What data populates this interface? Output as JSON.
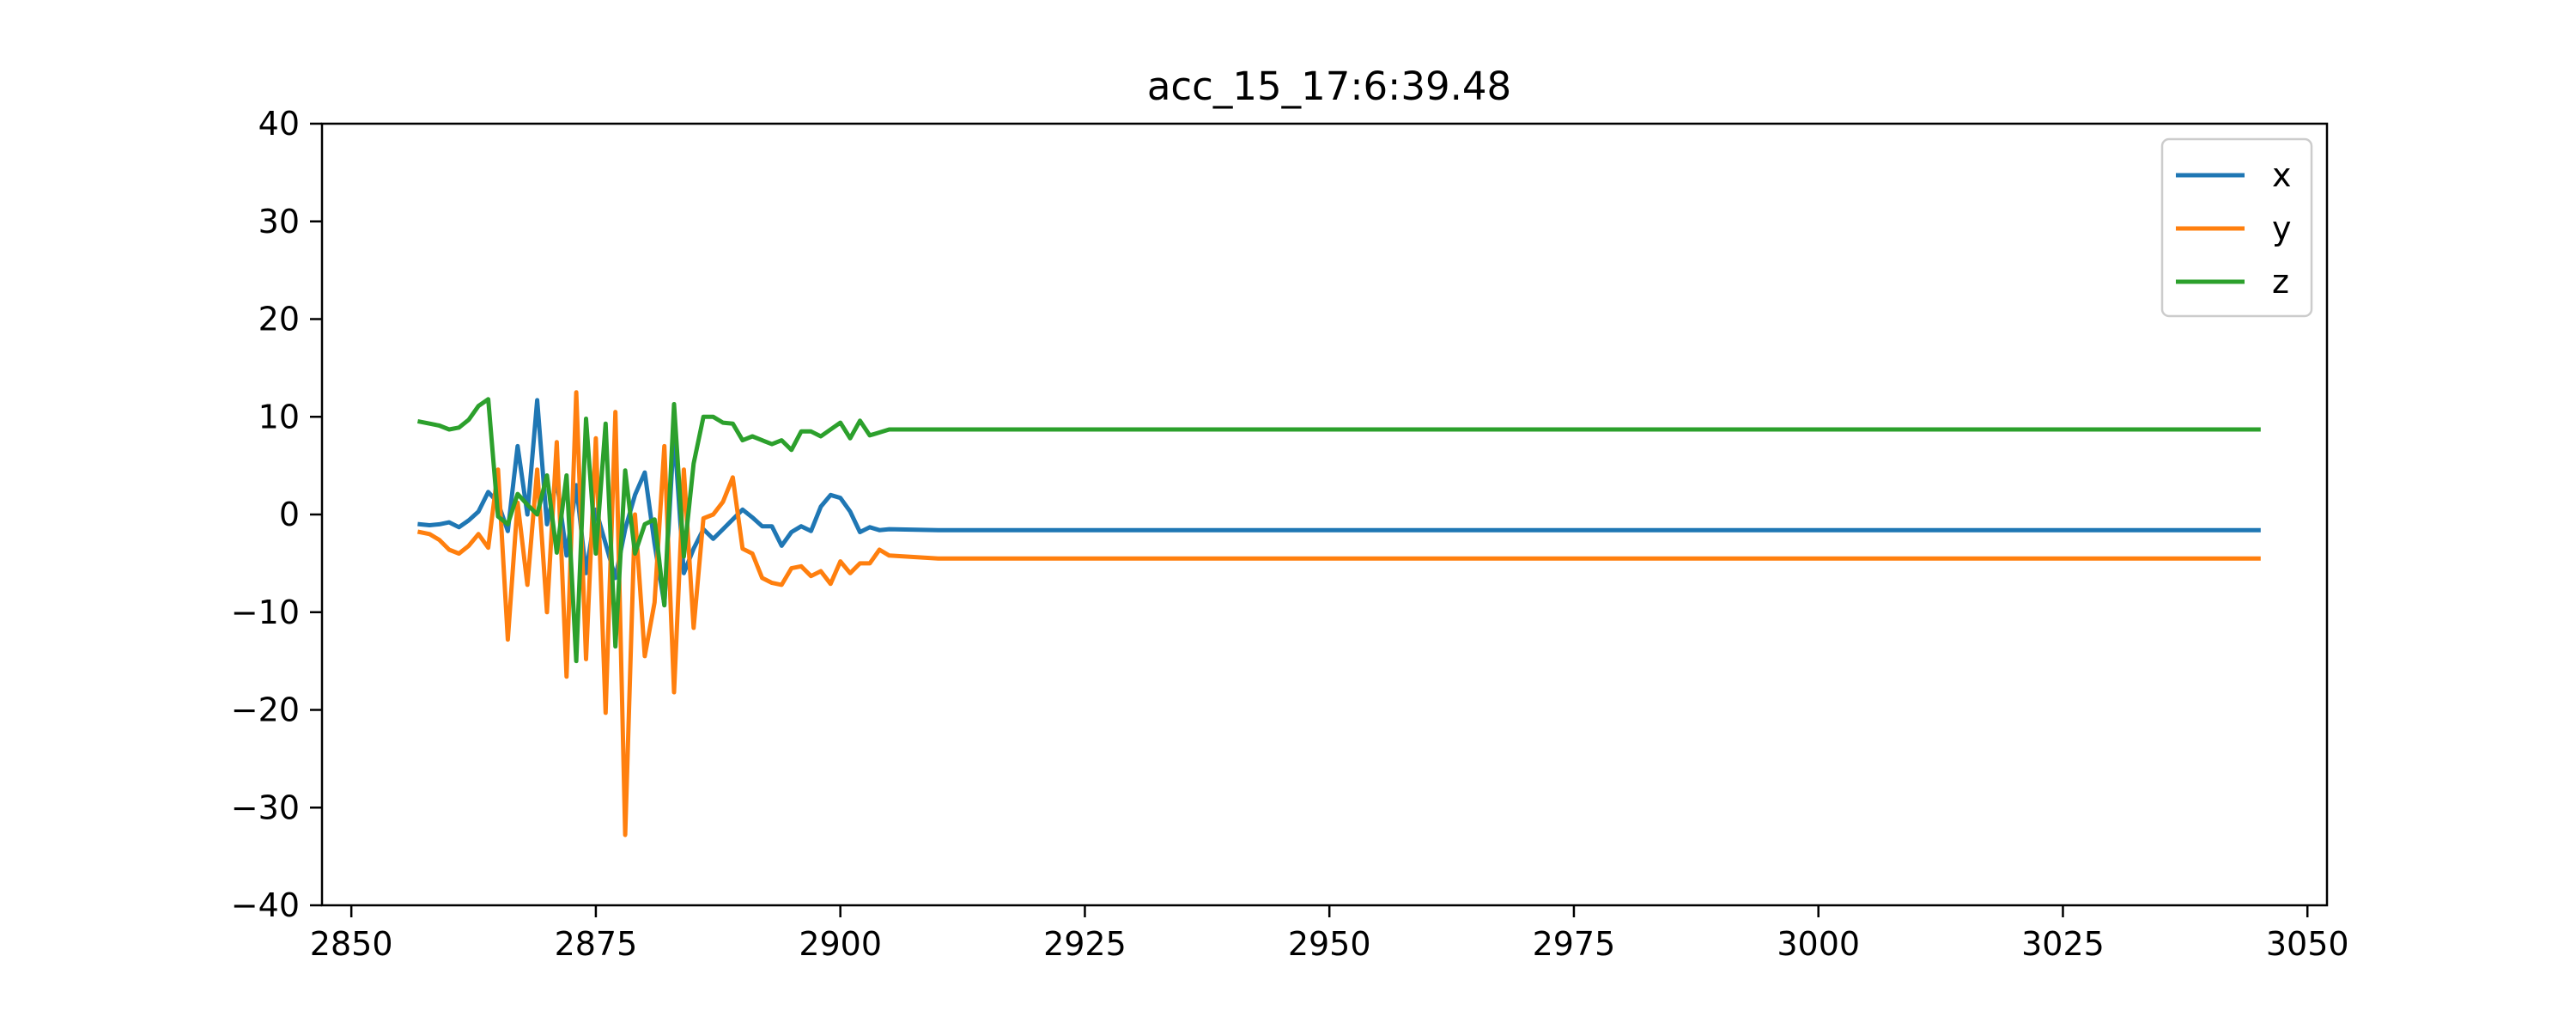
{
  "chart_data": {
    "type": "line",
    "title": "acc_15_17:6:39.48",
    "xlabel": "",
    "ylabel": "",
    "xlim": [
      2847,
      3052
    ],
    "ylim": [
      -40,
      40
    ],
    "xticks": [
      2850,
      2875,
      2900,
      2925,
      2950,
      2975,
      3000,
      3025,
      3050
    ],
    "yticks": [
      -40,
      -30,
      -20,
      -10,
      0,
      10,
      20,
      30,
      40
    ],
    "x": [
      2857,
      2858,
      2859,
      2860,
      2861,
      2862,
      2863,
      2864,
      2865,
      2866,
      2867,
      2868,
      2869,
      2870,
      2871,
      2872,
      2873,
      2874,
      2875,
      2876,
      2877,
      2878,
      2879,
      2880,
      2881,
      2882,
      2883,
      2884,
      2885,
      2886,
      2887,
      2888,
      2889,
      2890,
      2891,
      2892,
      2893,
      2894,
      2895,
      2896,
      2897,
      2898,
      2899,
      2900,
      2901,
      2902,
      2903,
      2904,
      2905,
      2910,
      2920,
      2930,
      2940,
      2950,
      2960,
      2970,
      2980,
      2990,
      3000,
      3010,
      3020,
      3030,
      3040,
      3045
    ],
    "grid": false,
    "legend_position": "top-right",
    "series": [
      {
        "name": "x",
        "color": "#1f77b4",
        "values": [
          -1.0,
          -1.1,
          -1.0,
          -0.8,
          -1.3,
          -0.6,
          0.3,
          2.3,
          1.2,
          -1.7,
          7.0,
          0.0,
          11.7,
          -1.0,
          3.5,
          -4.2,
          3.0,
          -6.0,
          0.5,
          -3.0,
          -6.5,
          -1.5,
          2.0,
          4.3,
          -3.0,
          -9.2,
          8.5,
          -6.0,
          -3.5,
          -1.5,
          -2.5,
          -1.5,
          -0.5,
          0.5,
          -0.3,
          -1.2,
          -1.2,
          -3.2,
          -1.8,
          -1.2,
          -1.7,
          0.8,
          2.0,
          1.7,
          0.3,
          -1.8,
          -1.3,
          -1.6,
          -1.5,
          -1.6,
          -1.6,
          -1.6,
          -1.6,
          -1.6,
          -1.6,
          -1.6,
          -1.6,
          -1.6,
          -1.6,
          -1.6,
          -1.6,
          -1.6,
          -1.6,
          -1.6
        ]
      },
      {
        "name": "y",
        "color": "#ff7f0e",
        "values": [
          -1.8,
          -2.0,
          -2.6,
          -3.6,
          -4.0,
          -3.2,
          -2.0,
          -3.4,
          4.6,
          -12.8,
          1.2,
          -7.2,
          4.6,
          -10.0,
          7.4,
          -16.6,
          12.5,
          -14.8,
          7.8,
          -20.3,
          10.5,
          -32.8,
          0.0,
          -14.5,
          -9.0,
          7.0,
          -18.2,
          4.6,
          -11.6,
          -0.4,
          0.0,
          1.3,
          3.8,
          -3.5,
          -4.0,
          -6.5,
          -7.0,
          -7.2,
          -5.5,
          -5.3,
          -6.3,
          -5.8,
          -7.1,
          -4.8,
          -6.0,
          -5.0,
          -5.0,
          -3.6,
          -4.2,
          -4.5,
          -4.5,
          -4.5,
          -4.5,
          -4.5,
          -4.5,
          -4.5,
          -4.5,
          -4.5,
          -4.5,
          -4.5,
          -4.5,
          -4.5,
          -4.5,
          -4.5
        ]
      },
      {
        "name": "z",
        "color": "#2ca02c",
        "values": [
          9.5,
          9.3,
          9.1,
          8.7,
          8.9,
          9.7,
          11.1,
          11.8,
          -0.2,
          -1.0,
          2.1,
          1.0,
          0.0,
          4.0,
          -3.9,
          4.0,
          -15.0,
          9.8,
          -4.0,
          9.3,
          -13.5,
          4.5,
          -4.0,
          -1.0,
          -0.5,
          -9.3,
          11.3,
          -4.3,
          5.2,
          10.0,
          10.0,
          9.4,
          9.3,
          7.6,
          8.0,
          7.6,
          7.2,
          7.6,
          6.6,
          8.5,
          8.5,
          8.0,
          8.7,
          9.4,
          7.8,
          9.6,
          8.1,
          8.4,
          8.7,
          8.7,
          8.7,
          8.7,
          8.7,
          8.7,
          8.7,
          8.7,
          8.7,
          8.7,
          8.7,
          8.7,
          8.7,
          8.7,
          8.7,
          8.7
        ]
      }
    ]
  }
}
